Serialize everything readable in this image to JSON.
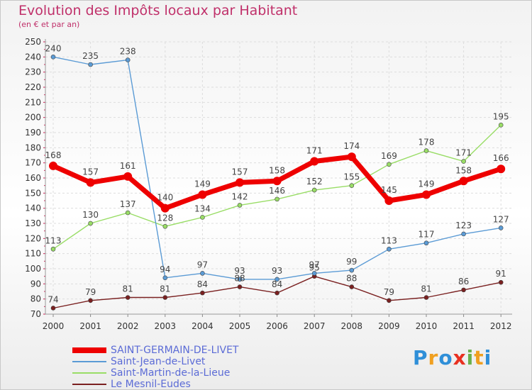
{
  "title": "Evolution des Impôts locaux par Habitant",
  "subtitle": "(en € et par an)",
  "logo": {
    "text": "Proxiti",
    "letters": [
      "P",
      "r",
      "o",
      "x",
      "i",
      "t",
      "i"
    ],
    "colors": [
      "#2f8fd8",
      "#f0a020",
      "#2f8fd8",
      "#e83020",
      "#6ab04c",
      "#f0a020",
      "#2f8fd8"
    ]
  },
  "chart_data": {
    "type": "line",
    "x": [
      "2000",
      "2001",
      "2002",
      "2003",
      "2004",
      "2005",
      "2006",
      "2007",
      "2008",
      "2009",
      "2010",
      "2011",
      "2012"
    ],
    "ylim": [
      70,
      250
    ],
    "yticks": [
      "70",
      "80",
      "90",
      "100",
      "110",
      "120",
      "130",
      "140",
      "150",
      "160",
      "170",
      "180",
      "190",
      "200",
      "210",
      "220",
      "230",
      "240",
      "250"
    ],
    "grid": true,
    "legend_position": "bottom-left",
    "series": [
      {
        "name": "SAINT-GERMAIN-DE-LIVET",
        "color": "#ee0000",
        "values": [
          168,
          157,
          161,
          140,
          149,
          157,
          158,
          171,
          174,
          145,
          149,
          158,
          166
        ]
      },
      {
        "name": "Saint-Jean-de-Livet",
        "color": "#5b9bd5",
        "values": [
          240,
          235,
          238,
          94,
          97,
          93,
          93,
          97,
          99,
          113,
          117,
          123,
          127
        ]
      },
      {
        "name": "Saint-Martin-de-la-Lieue",
        "color": "#99dd66",
        "values": [
          113,
          130,
          137,
          128,
          134,
          142,
          146,
          152,
          155,
          169,
          178,
          171,
          195
        ]
      },
      {
        "name": "Le Mesnil-Eudes",
        "color": "#7a2020",
        "values": [
          74,
          79,
          81,
          81,
          84,
          88,
          84,
          95,
          88,
          79,
          81,
          86,
          91
        ]
      }
    ]
  }
}
